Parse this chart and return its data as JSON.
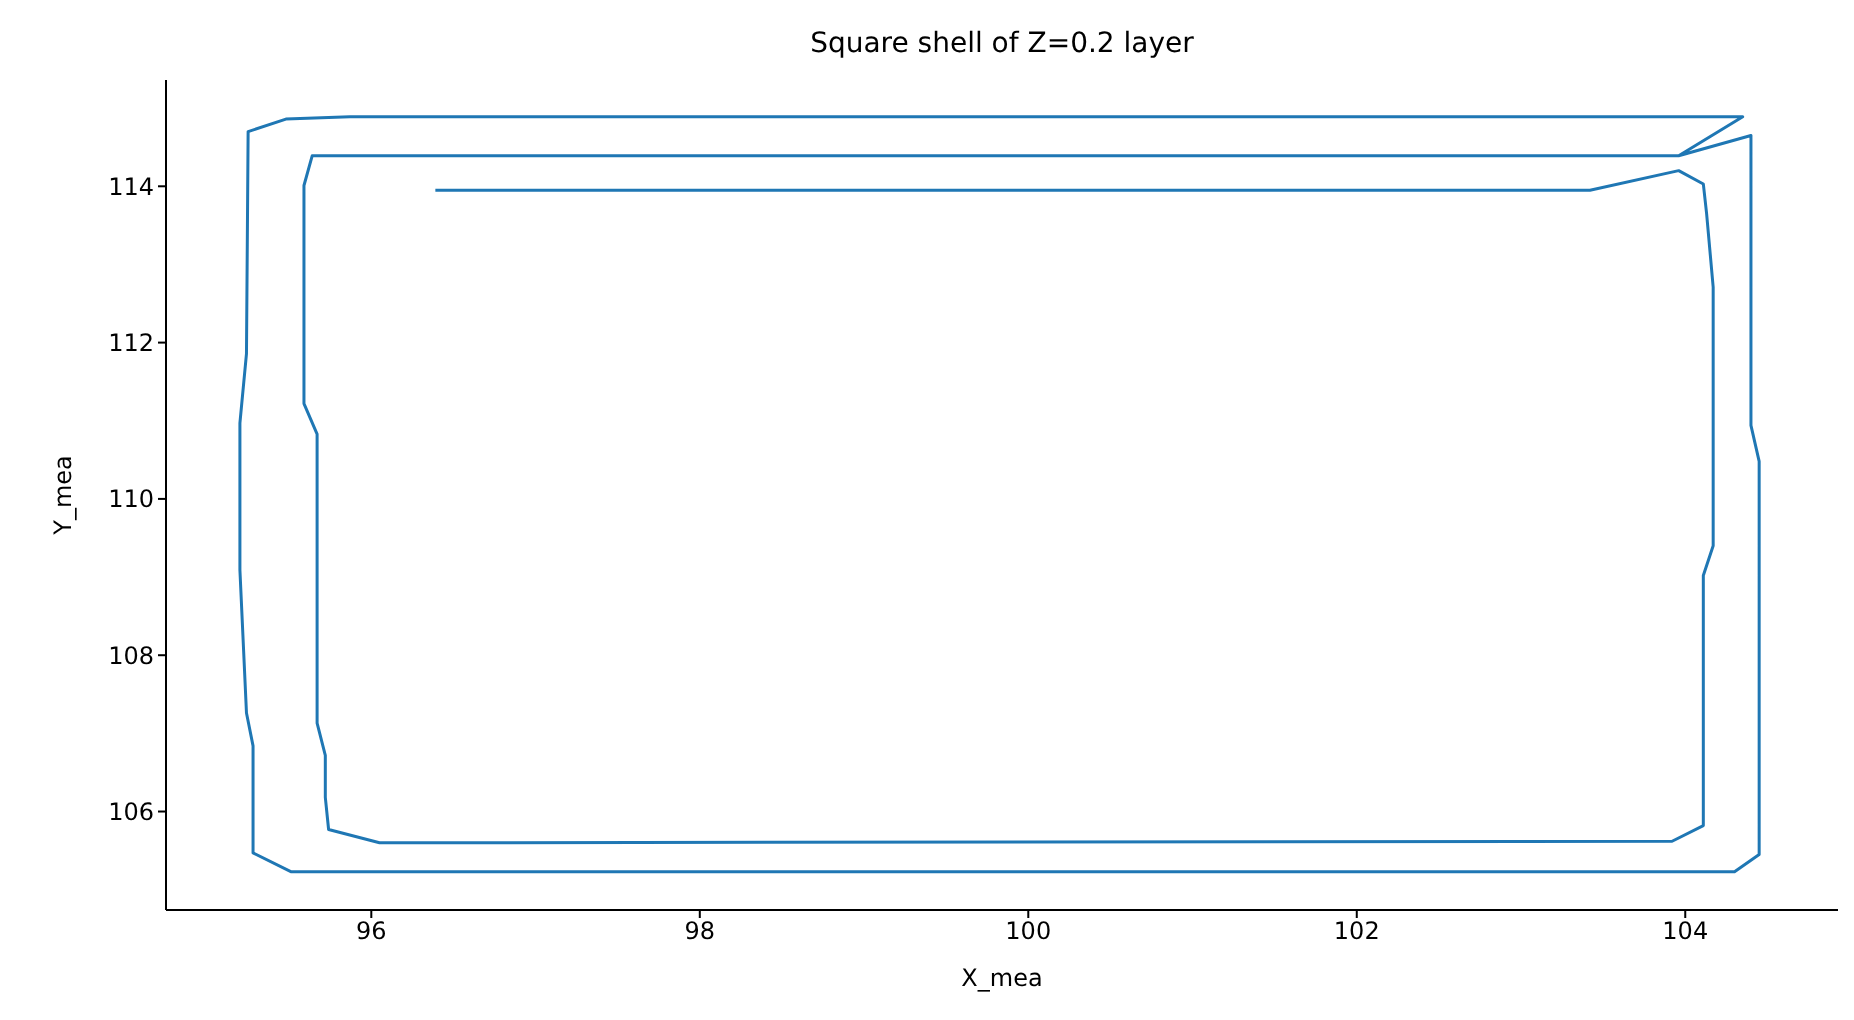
{
  "chart_data": {
    "type": "line",
    "title": "Square shell of Z=0.2 layer",
    "xlabel": "X_mea",
    "ylabel": "Y_mea",
    "series": [
      {
        "color": "#1f77b4",
        "x": [
          96.39,
          103.42,
          103.96,
          104.11,
          104.13,
          104.17,
          104.17,
          104.11,
          104.11,
          103.92,
          96.05,
          95.74,
          95.72,
          95.72,
          95.67,
          95.67,
          95.59,
          95.59,
          95.64,
          103.96,
          104.4,
          104.4,
          104.45,
          104.45,
          104.3,
          95.51,
          95.28,
          95.28,
          95.24,
          95.2,
          95.2,
          95.24,
          95.25,
          95.48,
          95.87,
          104.35,
          103.96
        ],
        "values": [
          113.95,
          113.95,
          114.2,
          114.03,
          113.65,
          112.71,
          109.4,
          109.02,
          105.82,
          105.62,
          105.6,
          105.77,
          106.18,
          106.72,
          107.13,
          110.83,
          111.22,
          114.01,
          114.39,
          114.39,
          114.65,
          110.94,
          110.48,
          105.45,
          105.23,
          105.23,
          105.47,
          106.84,
          107.26,
          109.09,
          110.97,
          111.86,
          114.7,
          114.86,
          114.89,
          114.89,
          114.39
        ]
      }
    ],
    "xlim": [
      94.75,
      104.93
    ],
    "ylim": [
      104.74,
      115.36
    ],
    "xticks": [
      96,
      98,
      100,
      102,
      104
    ],
    "yticks": [
      106,
      108,
      110,
      112,
      114
    ]
  }
}
